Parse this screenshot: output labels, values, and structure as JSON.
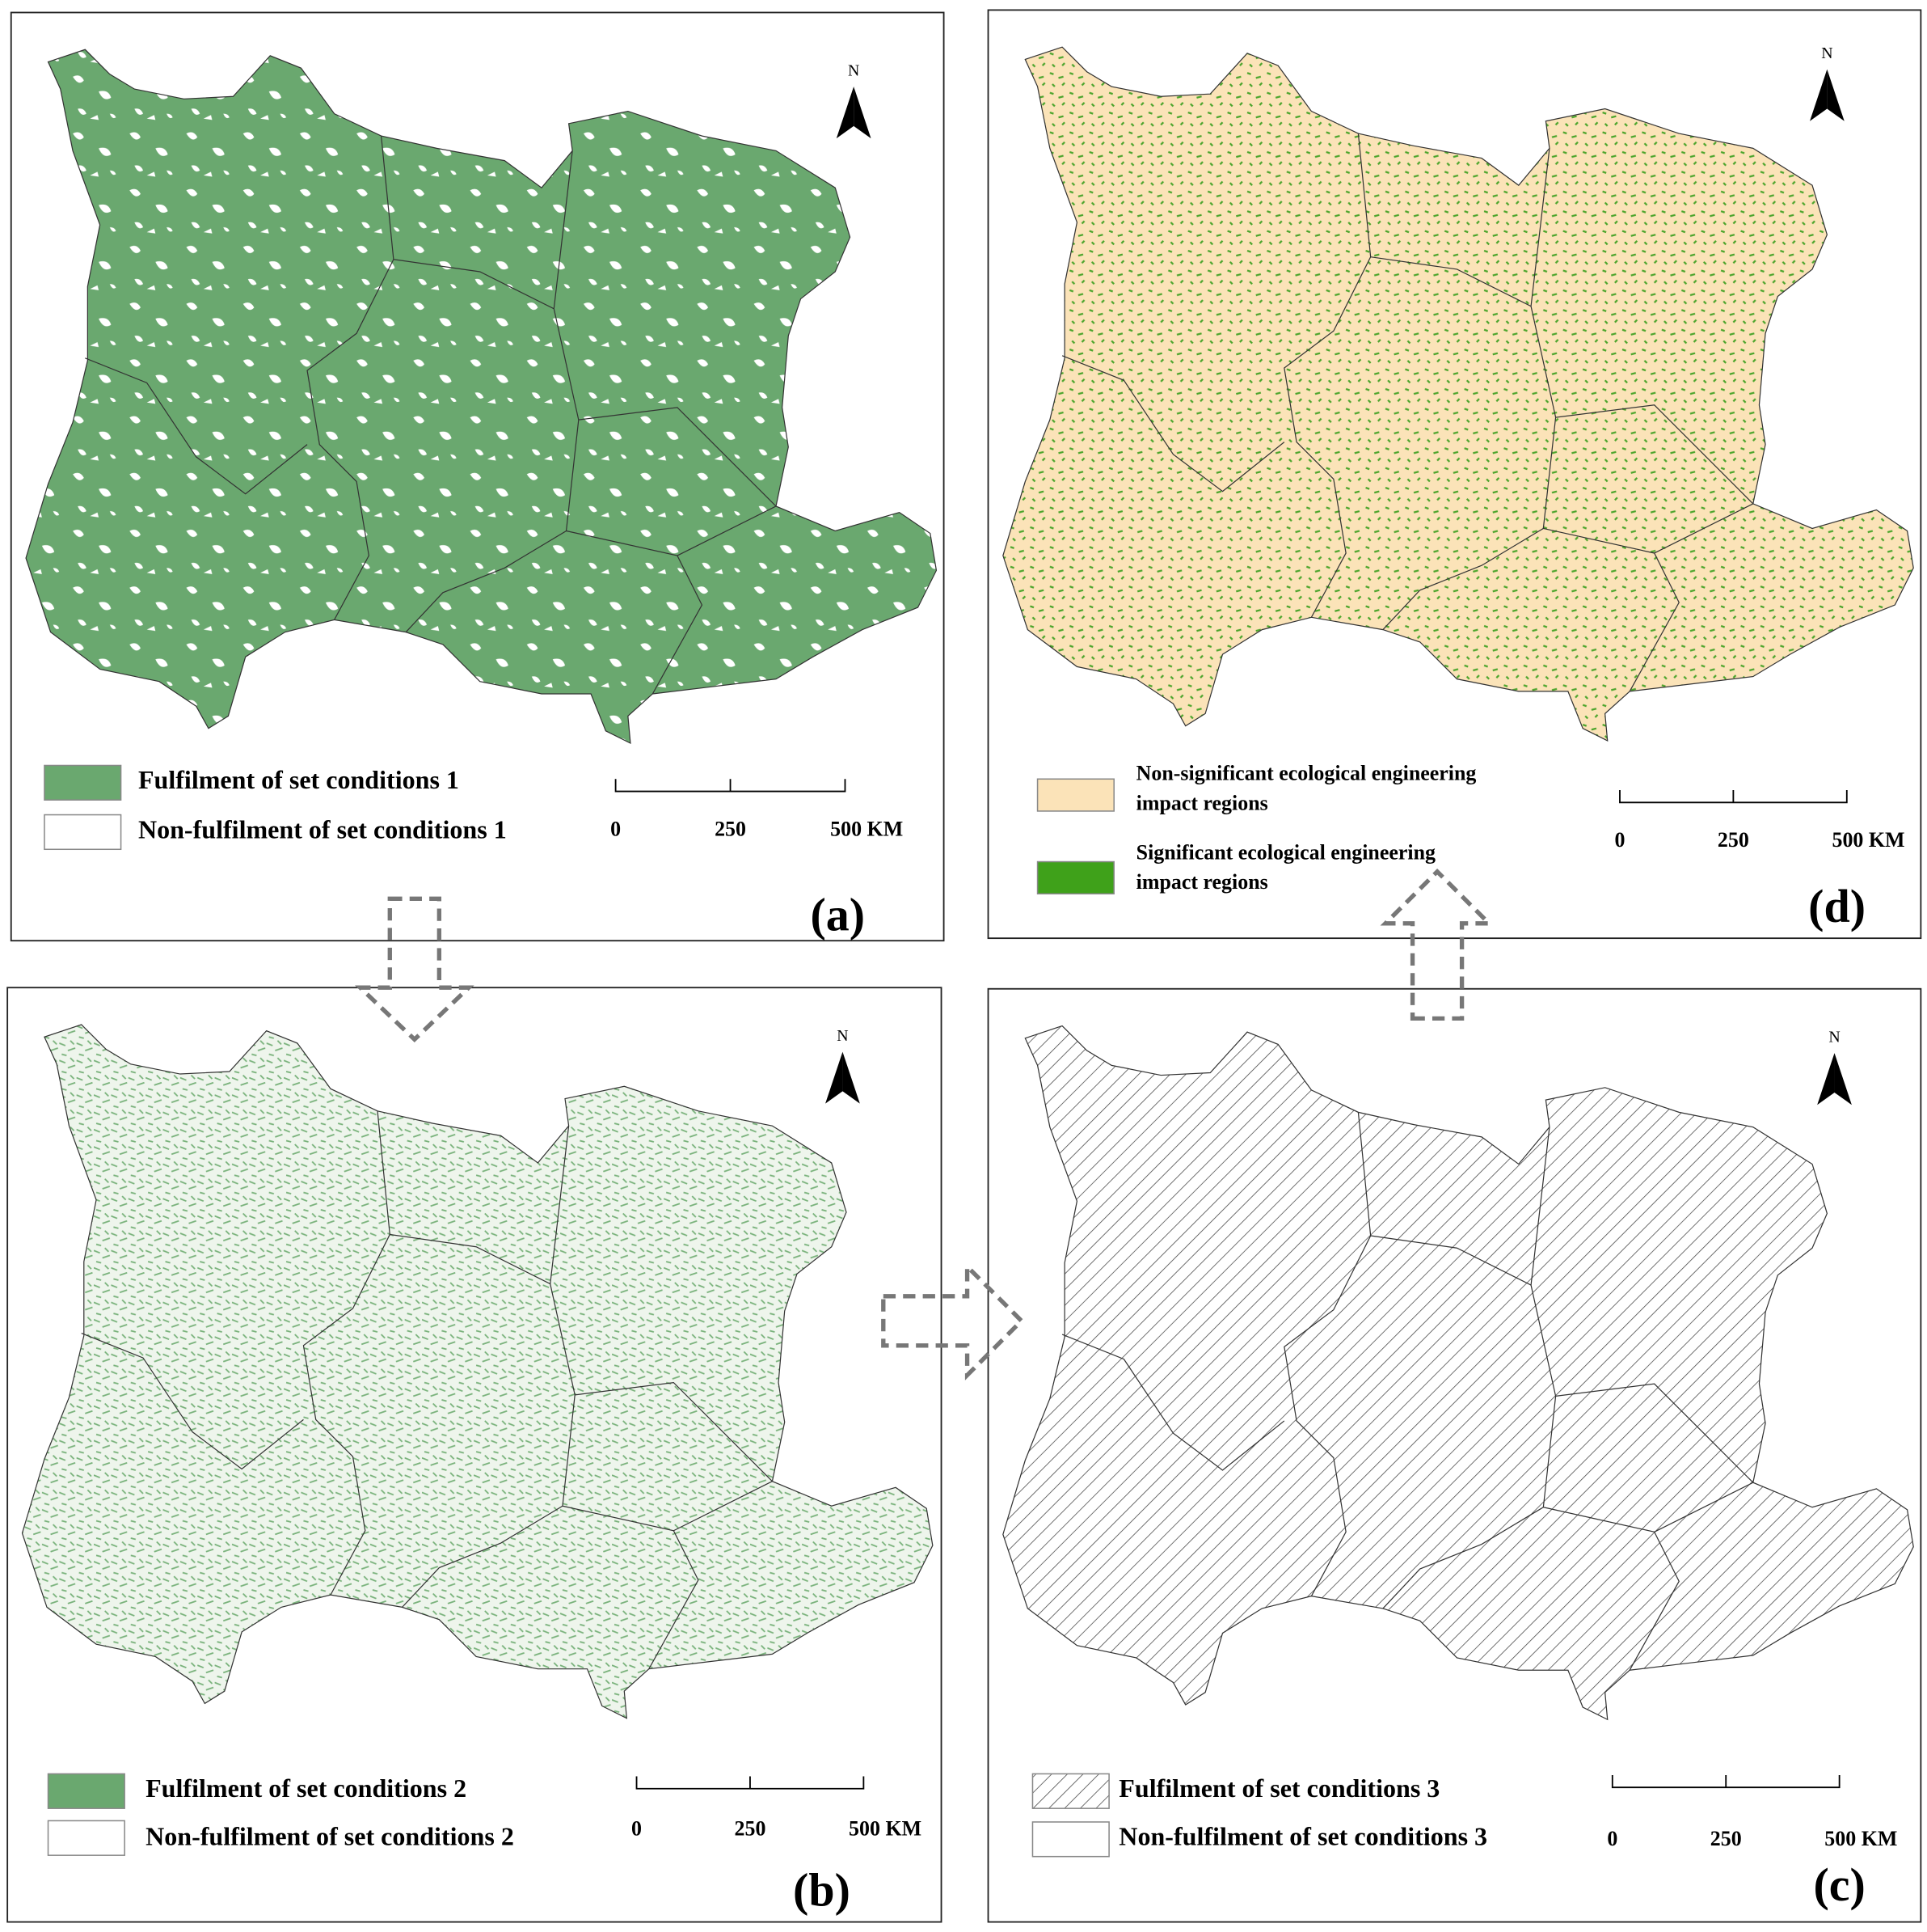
{
  "panels": [
    {
      "label": "(a)",
      "north": "N",
      "legend": [
        {
          "lines": [
            "Fulfilment of set conditions 1"
          ]
        },
        {
          "lines": [
            "Non-fulfilment of set conditions 1"
          ]
        }
      ],
      "scale": [
        "0",
        "250",
        "500 KM"
      ]
    },
    {
      "label": "(d)",
      "north": "N",
      "legend": [
        {
          "lines": [
            "Non-significant ecological engineering",
            "impact regions"
          ]
        },
        {
          "lines": [
            "Significant ecological engineering",
            "impact regions"
          ]
        }
      ],
      "scale": [
        "0",
        "250",
        "500 KM"
      ]
    },
    {
      "label": "(b)",
      "north": "N",
      "legend": [
        {
          "lines": [
            "Fulfilment of set conditions 2"
          ]
        },
        {
          "lines": [
            "Non-fulfilment of set conditions 2"
          ]
        }
      ],
      "scale": [
        "0",
        "250",
        "500 KM"
      ]
    },
    {
      "label": "(c)",
      "north": "N",
      "legend": [
        {
          "lines": [
            "Fulfilment of set conditions 3"
          ]
        },
        {
          "lines": [
            "Non-fulfilment of set conditions 3"
          ]
        }
      ],
      "scale": [
        "0",
        "250",
        "500 KM"
      ]
    }
  ]
}
